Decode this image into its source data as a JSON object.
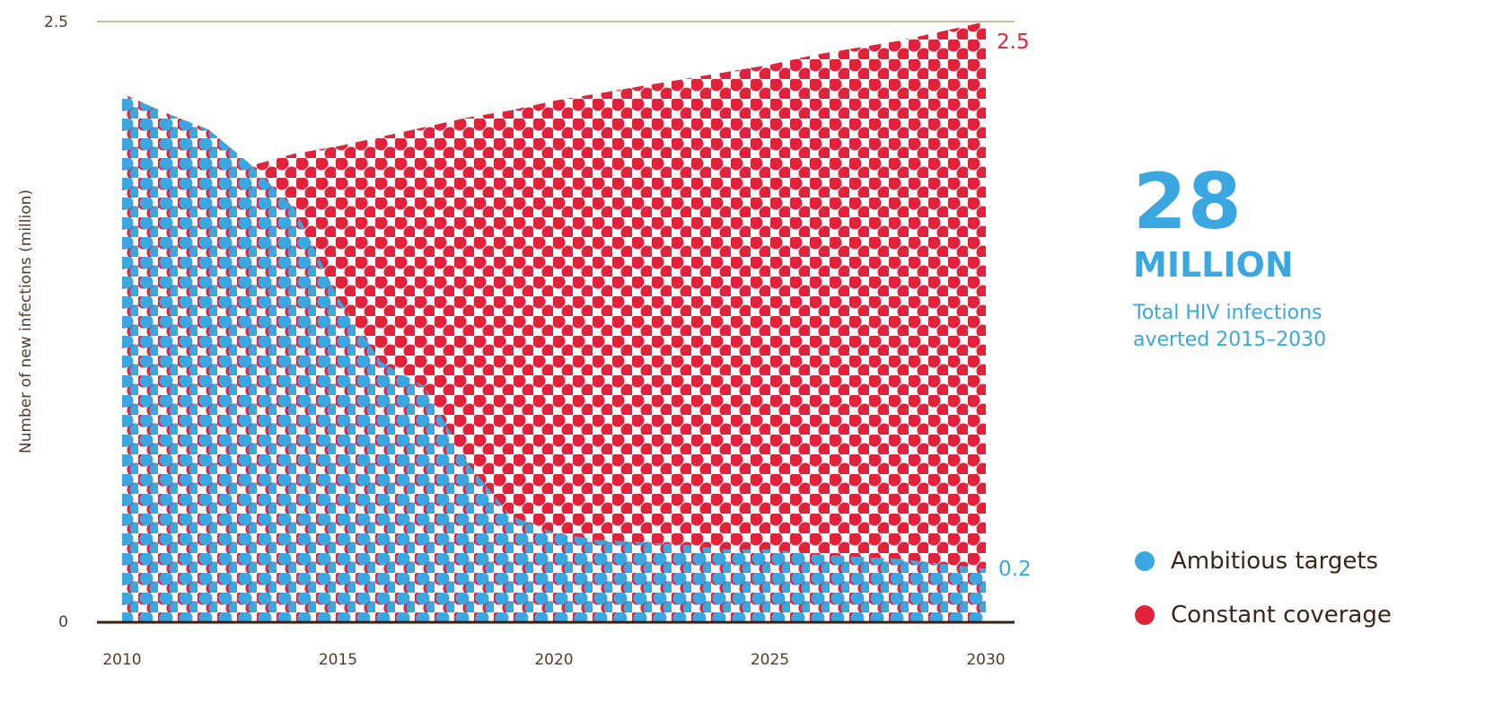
{
  "chart_data": {
    "type": "area",
    "x": [
      2010,
      2011,
      2012,
      2013,
      2014,
      2015,
      2016,
      2017,
      2018,
      2019,
      2020,
      2021,
      2022,
      2023,
      2024,
      2025,
      2026,
      2027,
      2028,
      2029,
      2030
    ],
    "series": [
      {
        "name": "Constant coverage",
        "color": "#e2213a",
        "values": [
          2.2,
          2.12,
          2.05,
          1.9,
          1.95,
          1.98,
          2.02,
          2.06,
          2.1,
          2.13,
          2.17,
          2.2,
          2.23,
          2.26,
          2.29,
          2.32,
          2.36,
          2.39,
          2.42,
          2.46,
          2.5
        ]
      },
      {
        "name": "Ambitious targets",
        "color": "#3ba7e0",
        "values": [
          2.2,
          2.12,
          2.05,
          1.9,
          1.72,
          1.35,
          1.08,
          0.98,
          0.66,
          0.44,
          0.37,
          0.34,
          0.33,
          0.32,
          0.3,
          0.3,
          0.28,
          0.27,
          0.26,
          0.24,
          0.22
        ]
      }
    ],
    "xlabel": "",
    "ylabel": "Number of new infections (million)",
    "ylim": [
      0,
      2.5
    ],
    "xlim": [
      2010,
      2030
    ],
    "x_ticks": [
      "2010",
      "2015",
      "2020",
      "2025",
      "2030"
    ],
    "y_ticks": [
      "0",
      "2.5"
    ],
    "end_labels": {
      "constant": "2.5",
      "ambitious": "0.2"
    },
    "grid": false,
    "legend_position": "right-bottom"
  },
  "callout": {
    "number": "28",
    "unit": "MILLION",
    "description_line1": "Total HIV infections",
    "description_line2": "averted 2015–2030"
  },
  "legend": [
    {
      "label": "Ambitious targets",
      "color": "#3ba7e0"
    },
    {
      "label": "Constant coverage",
      "color": "#e2213a"
    }
  ]
}
